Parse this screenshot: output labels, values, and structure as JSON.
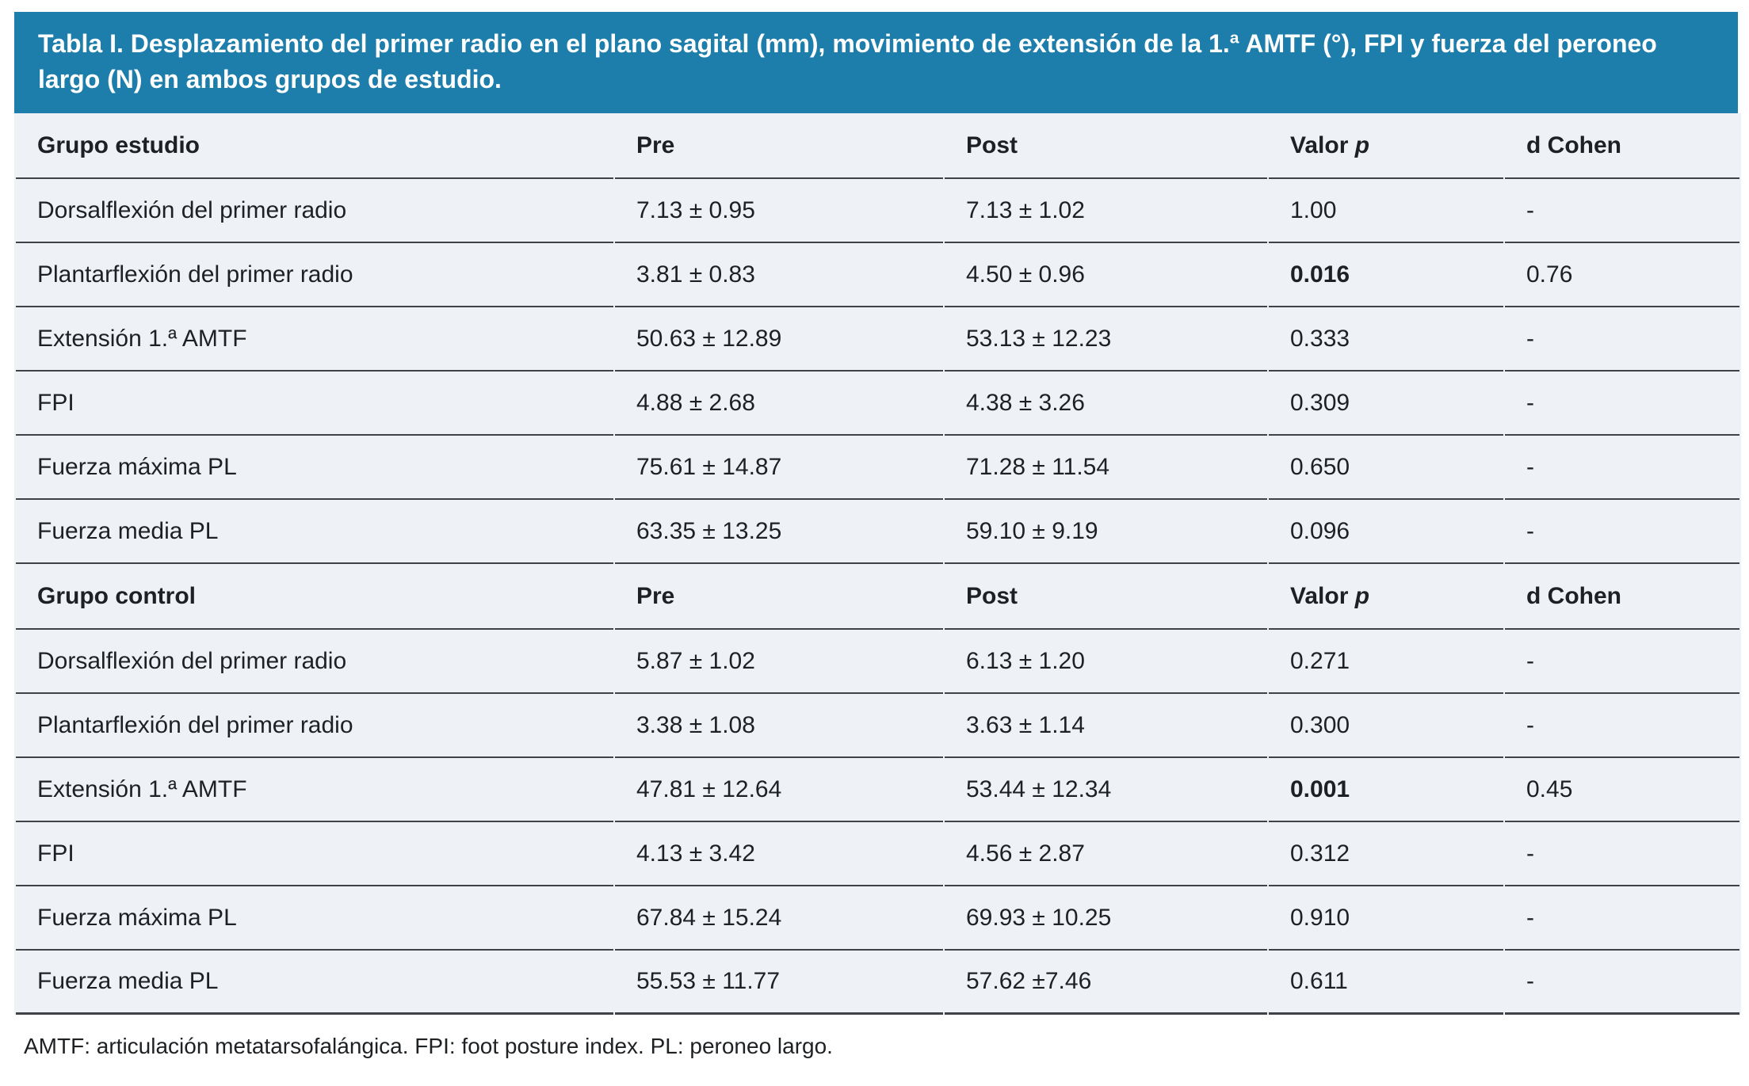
{
  "banner": {
    "title": "Tabla I. Desplazamiento del primer radio en el plano sagital (mm), movimiento de extensión de la 1.ª AMTF (°), FPI y fuerza del peroneo largo (N) en ambos grupos de estudio.",
    "background_color": "#1d7dab",
    "text_color": "#ffffff"
  },
  "table": {
    "row_background": "#eef1f6",
    "divider_color": "#3f4347",
    "columns": {
      "pre": "Pre",
      "post": "Post",
      "valor_p_prefix": "Valor",
      "valor_p_symbol": "p",
      "d_cohen": "d Cohen"
    },
    "sections": [
      {
        "group": "Grupo estudio",
        "rows": [
          {
            "label": "Dorsalflexión del primer radio",
            "pre": "7.13 ± 0.95",
            "post": "7.13 ± 1.02",
            "p": "1.00",
            "p_bold": false,
            "d": "-",
            "d_bold": false
          },
          {
            "label": "Plantarflexión del primer radio",
            "pre": "3.81 ± 0.83",
            "post": "4.50 ± 0.96",
            "p": "0.016",
            "p_bold": true,
            "d": "0.76",
            "d_bold": false
          },
          {
            "label": "Extensión 1.ª AMTF",
            "pre": "50.63 ± 12.89",
            "post": "53.13 ± 12.23",
            "p": "0.333",
            "p_bold": false,
            "d": "-",
            "d_bold": false
          },
          {
            "label": "FPI",
            "pre": "4.88 ± 2.68",
            "post": "4.38 ± 3.26",
            "p": "0.309",
            "p_bold": false,
            "d": "-",
            "d_bold": false
          },
          {
            "label": "Fuerza máxima PL",
            "pre": "75.61 ± 14.87",
            "post": "71.28 ± 11.54",
            "p": "0.650",
            "p_bold": false,
            "d": "-",
            "d_bold": false
          },
          {
            "label": "Fuerza media PL",
            "pre": "63.35 ± 13.25",
            "post": "59.10 ± 9.19",
            "p": "0.096",
            "p_bold": false,
            "d": "-",
            "d_bold": false
          }
        ]
      },
      {
        "group": "Grupo control",
        "rows": [
          {
            "label": "Dorsalflexión del primer radio",
            "pre": "5.87 ± 1.02",
            "post": "6.13 ± 1.20",
            "p": "0.271",
            "p_bold": false,
            "d": "-",
            "d_bold": false
          },
          {
            "label": "Plantarflexión del primer radio",
            "pre": "3.38 ± 1.08",
            "post": "3.63 ± 1.14",
            "p": "0.300",
            "p_bold": false,
            "d": "-",
            "d_bold": false
          },
          {
            "label": "Extensión 1.ª AMTF",
            "pre": "47.81 ± 12.64",
            "post": "53.44 ± 12.34",
            "p": "0.001",
            "p_bold": true,
            "d": "0.45",
            "d_bold": false
          },
          {
            "label": "FPI",
            "pre": "4.13 ± 3.42",
            "post": "4.56 ± 2.87",
            "p": "0.312",
            "p_bold": false,
            "d": "-",
            "d_bold": false
          },
          {
            "label": "Fuerza máxima PL",
            "pre": "67.84 ± 15.24",
            "post": "69.93 ± 10.25",
            "p": "0.910",
            "p_bold": false,
            "d": "-",
            "d_bold": false
          },
          {
            "label": "Fuerza media PL",
            "pre": "55.53 ± 11.77",
            "post": "57.62 ±7.46",
            "p": "0.611",
            "p_bold": false,
            "d": "-",
            "d_bold": false
          }
        ]
      }
    ]
  },
  "footnote": "AMTF: articulación metatarsofalángica. FPI: foot posture index. PL: peroneo largo."
}
